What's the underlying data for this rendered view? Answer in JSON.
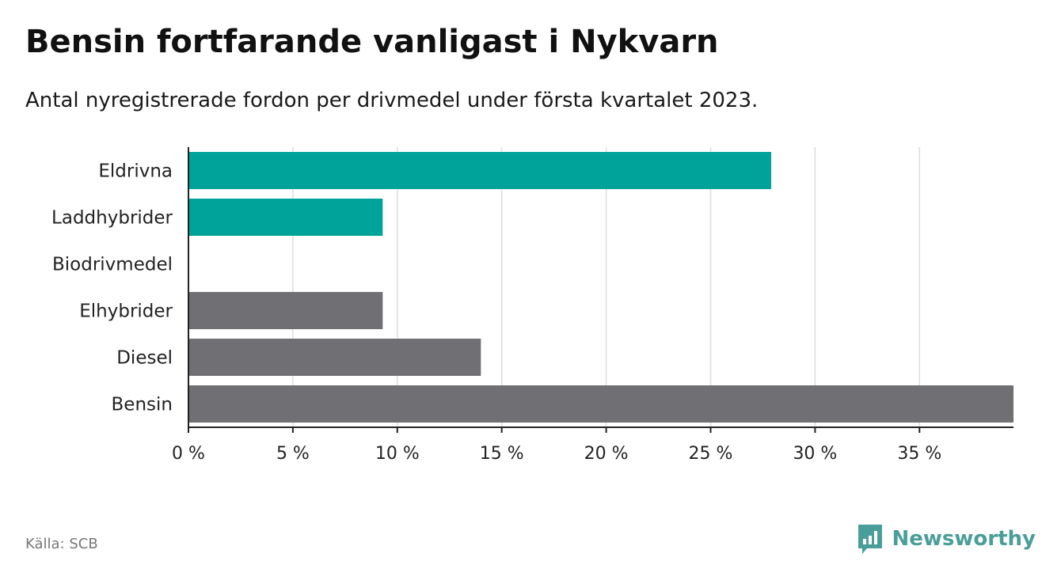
{
  "title": "Bensin fortfarande vanligast i Nykvarn",
  "subtitle": "Antal nyregistrerade fordon per drivmedel under första kvartalet 2023.",
  "source": "Källa: SCB",
  "brand": "Newsworthy",
  "colors": {
    "highlight": "#00a39a",
    "default": "#6f6f74",
    "grid": "#dddddd",
    "axis": "#222222",
    "brand": "#4a9e9a"
  },
  "chart_data": {
    "type": "bar",
    "orientation": "horizontal",
    "categories": [
      "Eldrivna",
      "Laddhybrider",
      "Biodrivmedel",
      "Elhybrider",
      "Diesel",
      "Bensin"
    ],
    "values": [
      27.9,
      9.3,
      0,
      9.3,
      14.0,
      39.5
    ],
    "highlighted": [
      true,
      true,
      false,
      false,
      false,
      false
    ],
    "xlim": [
      0,
      39.5
    ],
    "xticks": [
      0,
      5,
      10,
      15,
      20,
      25,
      30,
      35
    ],
    "xtick_labels": [
      "0 %",
      "5 %",
      "10 %",
      "15 %",
      "20 %",
      "25 %",
      "30 %",
      "35 %"
    ],
    "grid": "vertical"
  }
}
